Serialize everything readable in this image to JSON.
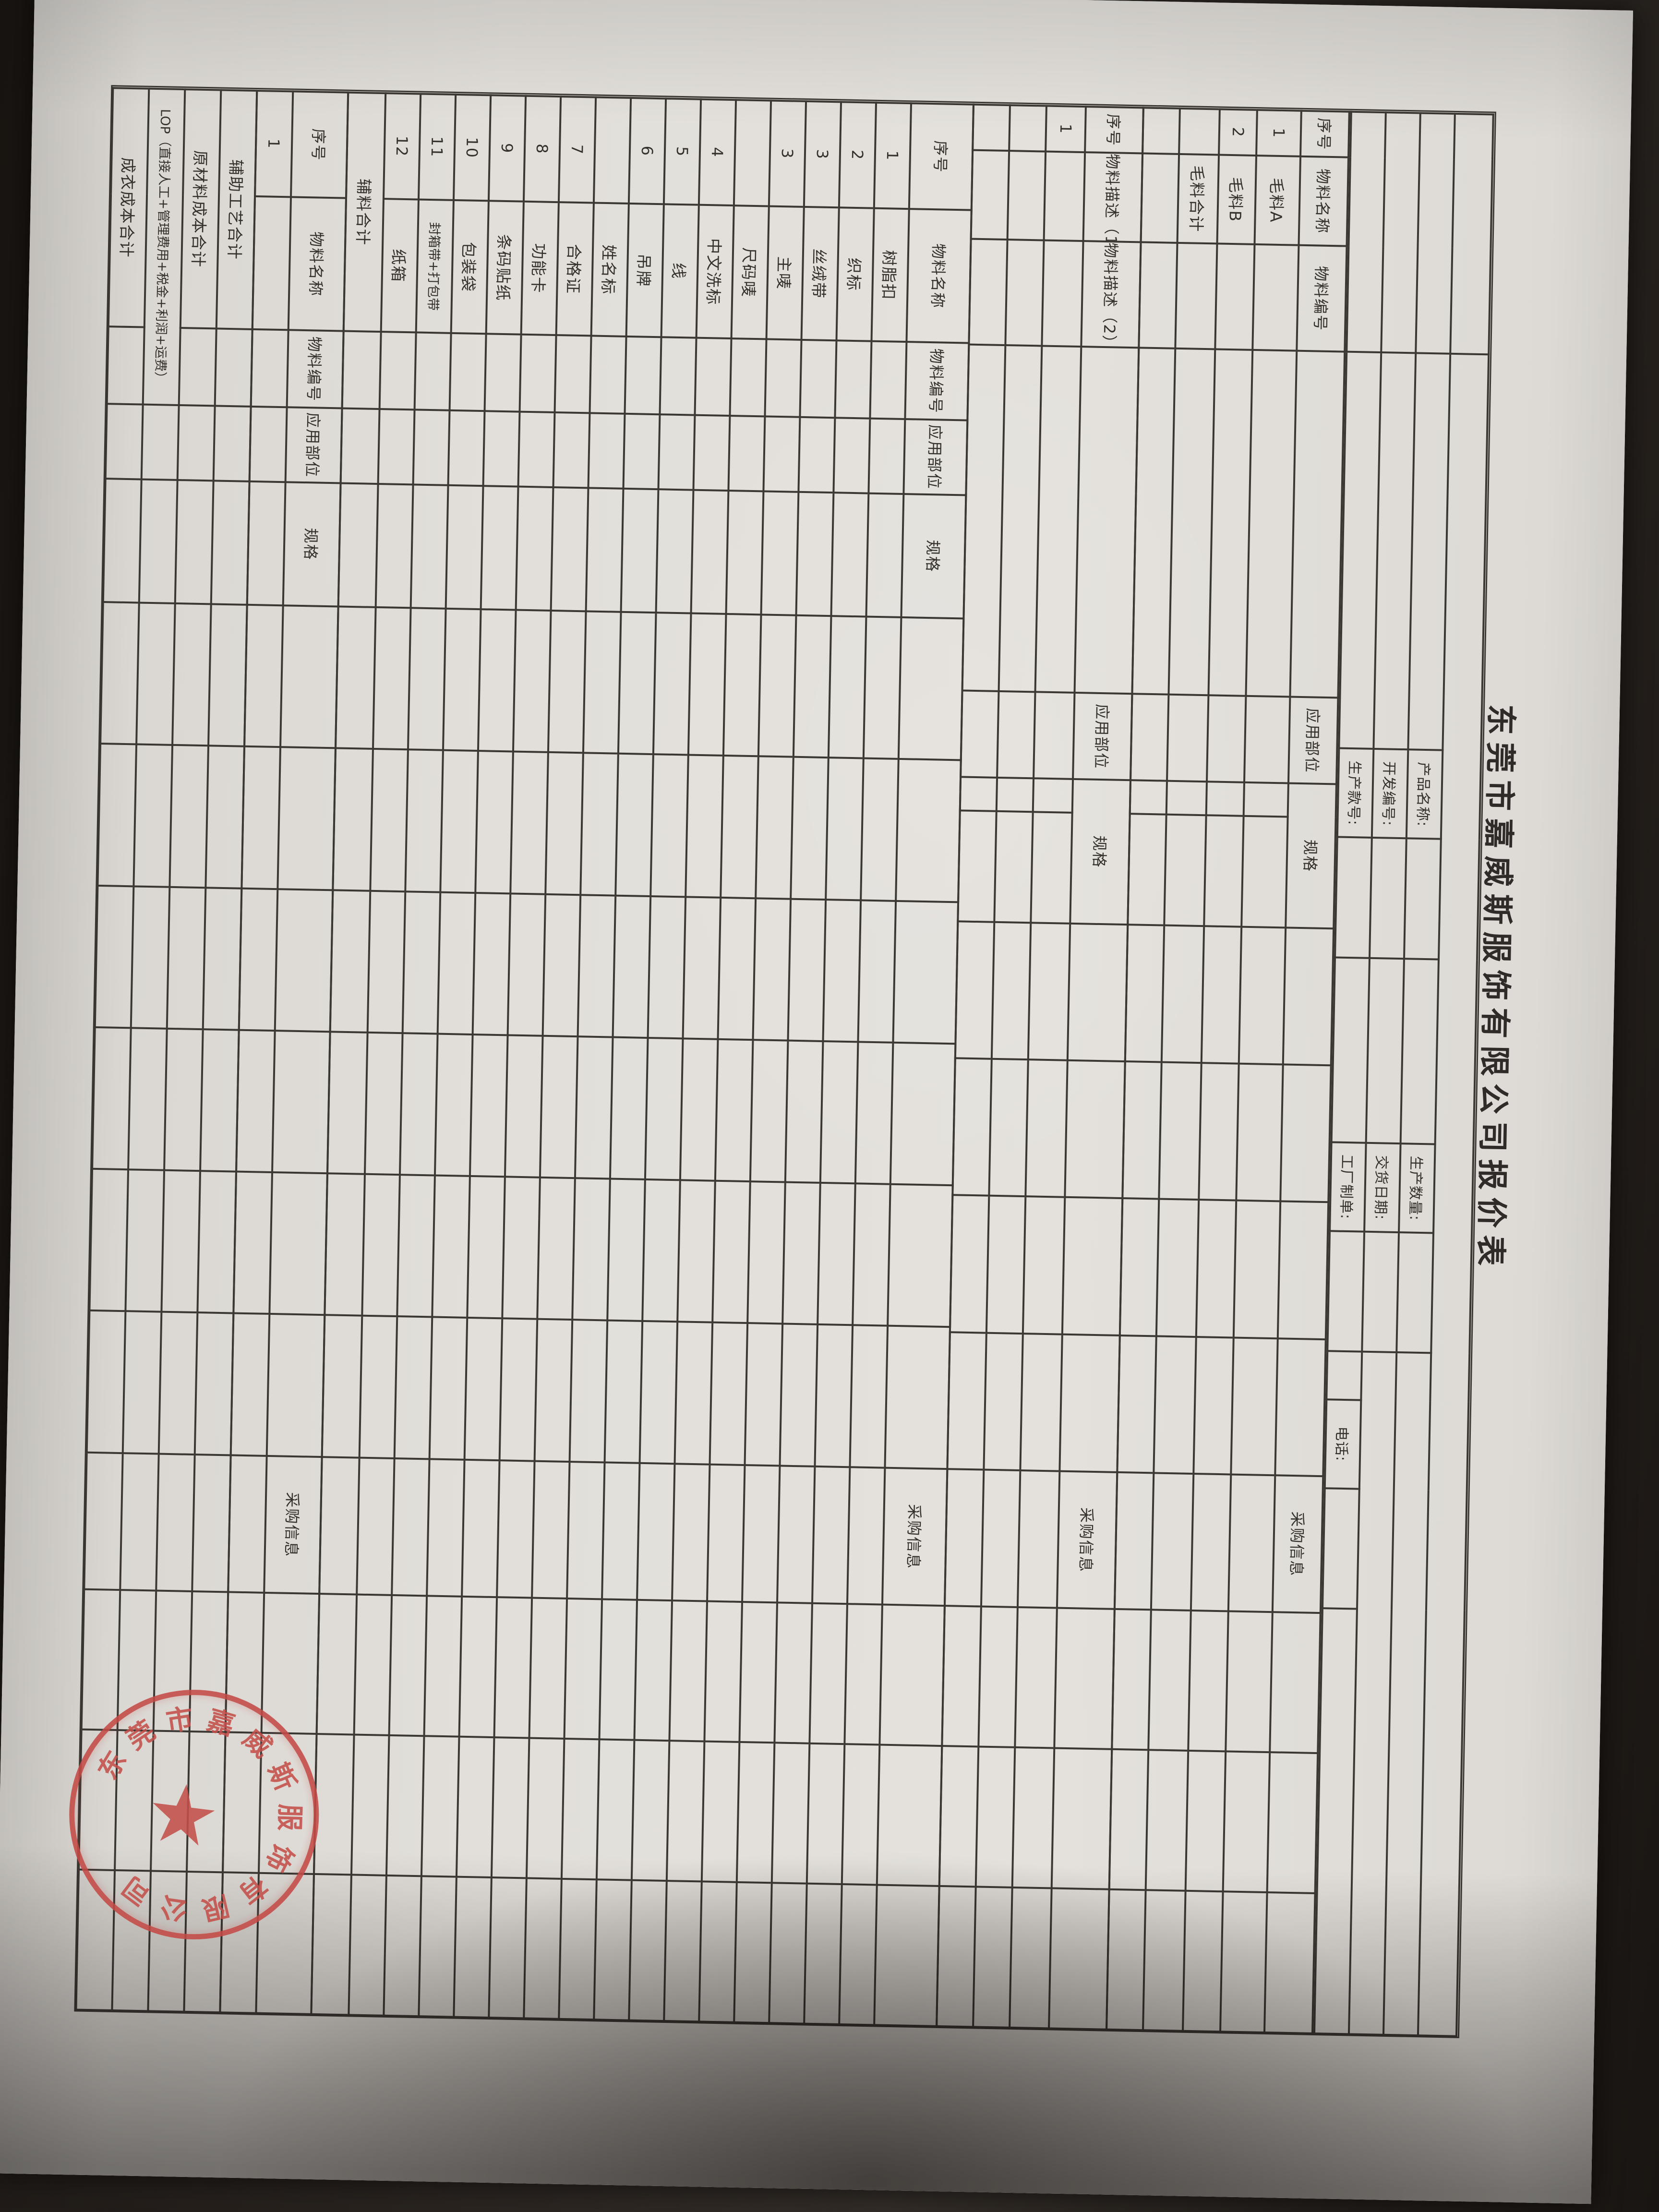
{
  "photo": {
    "description": "paper quotation form rotated 90 degrees clockwise on dark desk",
    "background_color": "#2b2521",
    "paper_color": "#e0ddd8",
    "ink_color": "#3b3733",
    "stamp_color": "#c4504b"
  },
  "title": "东莞市嘉威斯服饰有限公司报价表",
  "header_fields": {
    "product_name_label": "产品名称:",
    "dev_no_label": "开发编号:",
    "style_no_label": "生产款号:",
    "qty_label": "生产数量:",
    "delivery_label": "交货日期:",
    "factory_order_label": "工厂制单:",
    "phone_label": "电话:",
    "product_name_value": "",
    "dev_no_value": "",
    "style_no_value": "",
    "qty_value": "",
    "delivery_value": "",
    "factory_order_value": "",
    "phone_value": ""
  },
  "sections": [
    {
      "id": "fabric",
      "layout": "a",
      "header": [
        "序号",
        "物料名称",
        "物料编号",
        "应用部位",
        "规格",
        "采购信息"
      ],
      "rows": [
        [
          "1",
          "毛料A"
        ],
        [
          "2",
          "毛料B"
        ],
        [
          "",
          "毛料合计"
        ]
      ],
      "spacer_rows_after": 1
    },
    {
      "id": "material-description",
      "layout": "a",
      "header": [
        "序号",
        "物料描述（1）",
        "物料描述（2）",
        "应用部位",
        "规格",
        "采购信息"
      ],
      "rows": [
        [
          "1",
          ""
        ]
      ],
      "spacer_rows_after": 2
    },
    {
      "id": "accessories",
      "layout": "c",
      "header": [
        "序号",
        "物料名称",
        "物料编号",
        "应用部位",
        "规格",
        "采购信息"
      ],
      "rows": [
        [
          "1",
          "树脂扣"
        ],
        [
          "2",
          "织标"
        ],
        [
          "3",
          "丝绒带"
        ],
        [
          "3",
          "主唛"
        ],
        [
          "",
          "尺码唛"
        ],
        [
          "4",
          "中文洗标"
        ],
        [
          "5",
          "线"
        ],
        [
          "6",
          "吊牌"
        ],
        [
          "",
          "姓名标"
        ],
        [
          "7",
          "合格证"
        ],
        [
          "8",
          "功能卡"
        ],
        [
          "9",
          "条码贴纸"
        ],
        [
          "10",
          "包装袋"
        ],
        [
          "11",
          "封箱带+打包带"
        ],
        [
          "12",
          "纸箱"
        ]
      ],
      "footer": "辅料合计",
      "spacer_rows_after": 0
    },
    {
      "id": "other-material",
      "layout": "c",
      "header": [
        "序号",
        "物料名称",
        "物料编号",
        "应用部位",
        "规格",
        "采购信息"
      ],
      "rows": [
        [
          "1",
          ""
        ]
      ],
      "spacer_rows_after": 0
    }
  ],
  "totals": [
    "辅助工艺合计",
    "原材料成本合计",
    "LOP（直接人工+管理费用+税金+利润+运费）",
    "成衣成本合计"
  ],
  "stamp": {
    "ring_text": "东莞市嘉威斯服饰有限公司",
    "center_icon": "star"
  }
}
